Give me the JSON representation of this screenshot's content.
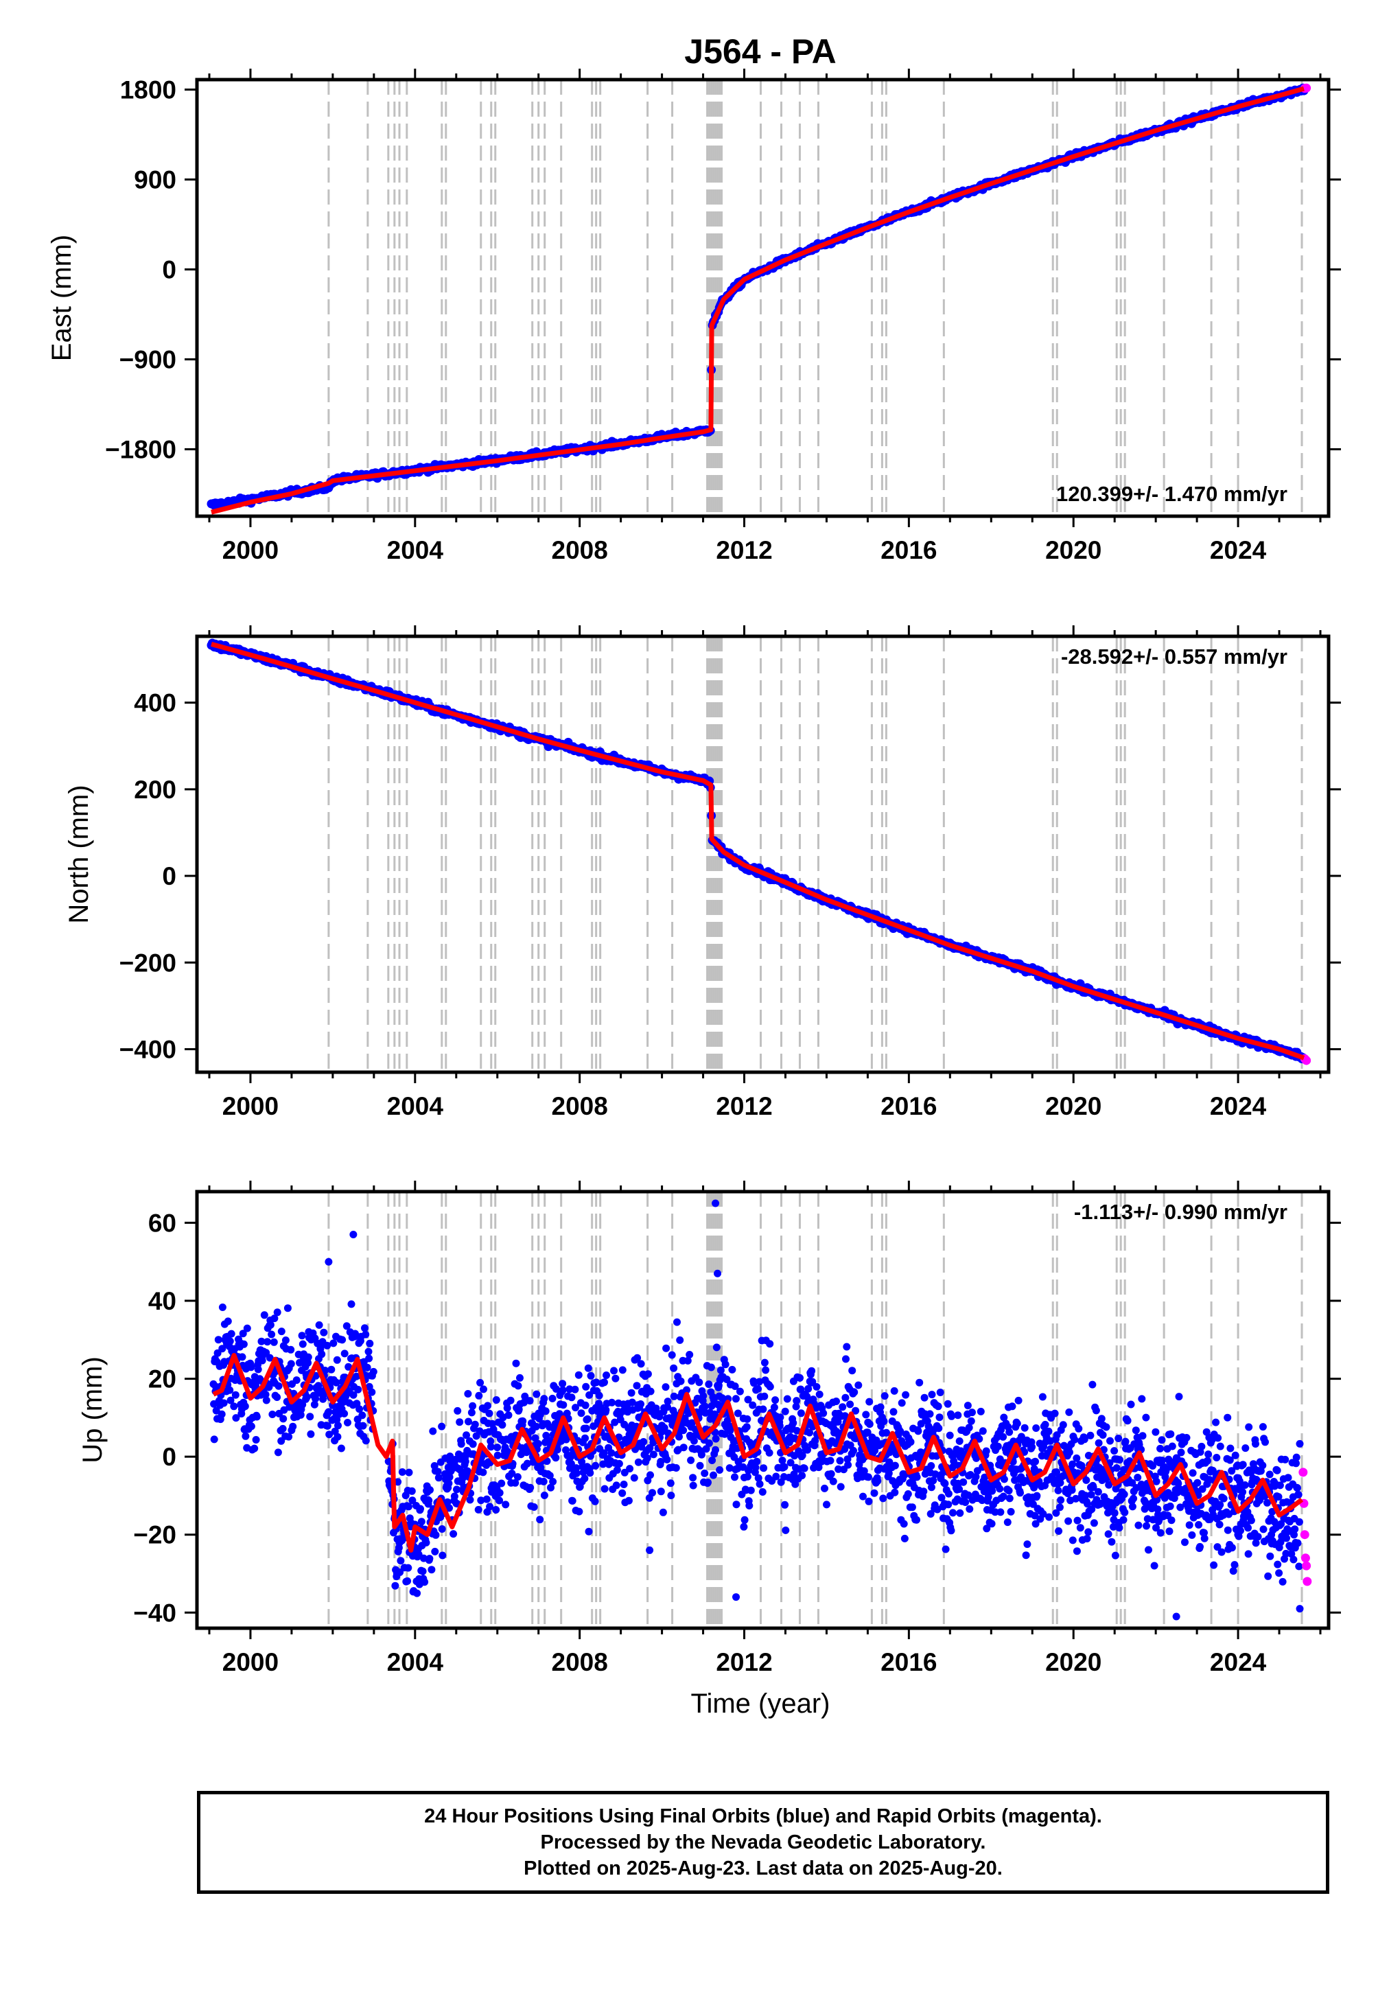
{
  "figure": {
    "title": "J564 - PA",
    "xlabel": "Time (year)"
  },
  "footer": {
    "line1": "24 Hour Positions Using Final Orbits (blue) and Rapid Orbits (magenta).",
    "line2": "Processed by the Nevada Geodetic Laboratory.",
    "line3": "Plotted on 2025-Aug-23. Last data on 2025-Aug-20."
  },
  "colors": {
    "final_orbits": "#0000ff",
    "rapid_orbits": "#ff00ff",
    "model": "#ff0000",
    "event_lines": "#c0c0c0"
  },
  "chart_data": [
    {
      "type": "scatter",
      "ylabel": "East (mm)",
      "xlim": [
        1998.7,
        2026.2
      ],
      "ylim": [
        -2470,
        1900
      ],
      "x_ticks": [
        2000,
        2004,
        2008,
        2012,
        2016,
        2020,
        2024
      ],
      "y_ticks": [
        -1800,
        -900,
        0,
        900,
        1800
      ],
      "y_tick_labels": [
        "−1800",
        "−900",
        "0",
        "900",
        "1800"
      ],
      "rate": "120.399+/- 1.470 mm/yr",
      "rate_position": "bottom-right",
      "grid": false,
      "series": [
        {
          "color": "blue",
          "x": [
            1999.05,
            2000.0,
            2001.0,
            2001.9,
            2002.0,
            2003.0,
            2004.0,
            2005.0,
            2006.0,
            2007.0,
            2008.0,
            2009.0,
            2010.0,
            2011.0,
            2011.19,
            2011.21,
            2011.5,
            2012.0,
            2013.0,
            2014.0,
            2015.0,
            2016.0,
            2017.0,
            2018.0,
            2019.0,
            2020.0,
            2021.0,
            2022.0,
            2023.0,
            2024.0,
            2025.0,
            2025.6
          ],
          "y": [
            -2360,
            -2305,
            -2235,
            -2180,
            -2110,
            -2060,
            -2010,
            -1960,
            -1910,
            -1855,
            -1800,
            -1745,
            -1680,
            -1620,
            -1600,
            -560,
            -300,
            -100,
            95,
            260,
            420,
            575,
            720,
            860,
            995,
            1130,
            1260,
            1390,
            1510,
            1630,
            1740,
            1810
          ]
        },
        {
          "color": "magenta",
          "x": [
            2025.62,
            2025.64,
            2025.66
          ],
          "y": [
            1812,
            1814,
            1816
          ]
        },
        {
          "name": "model",
          "color": "red",
          "x": [
            1999.05,
            2000.0,
            2001.0,
            2001.9,
            2002.0,
            2003.0,
            2004.0,
            2005.0,
            2006.0,
            2007.0,
            2008.0,
            2009.0,
            2010.0,
            2011.0,
            2011.19,
            2011.21,
            2011.5,
            2012.0,
            2013.0,
            2014.0,
            2015.0,
            2016.0,
            2017.0,
            2018.0,
            2019.0,
            2020.0,
            2021.0,
            2022.0,
            2023.0,
            2024.0,
            2025.0,
            2025.6
          ],
          "y": [
            -2430,
            -2330,
            -2245,
            -2140,
            -2115,
            -2065,
            -2015,
            -1965,
            -1915,
            -1860,
            -1805,
            -1750,
            -1685,
            -1625,
            -1605,
            -560,
            -300,
            -100,
            95,
            260,
            420,
            575,
            720,
            860,
            995,
            1130,
            1260,
            1390,
            1510,
            1630,
            1740,
            1810
          ]
        }
      ]
    },
    {
      "type": "scatter",
      "ylabel": "North (mm)",
      "xlim": [
        1998.7,
        2026.2
      ],
      "ylim": [
        -453,
        553
      ],
      "x_ticks": [
        2000,
        2004,
        2008,
        2012,
        2016,
        2020,
        2024
      ],
      "y_ticks": [
        -400,
        -200,
        0,
        200,
        400
      ],
      "y_tick_labels": [
        "−400",
        "−200",
        "0",
        "200",
        "400"
      ],
      "rate": "-28.592+/- 0.557 mm/yr",
      "rate_position": "top-right",
      "grid": false,
      "series": [
        {
          "color": "blue",
          "x": [
            1999.05,
            2000.0,
            2001.0,
            2002.0,
            2003.0,
            2004.0,
            2005.0,
            2006.0,
            2007.0,
            2008.0,
            2009.0,
            2010.0,
            2011.0,
            2011.19,
            2011.21,
            2011.5,
            2012.0,
            2013.0,
            2014.0,
            2015.0,
            2016.0,
            2017.0,
            2018.0,
            2019.0,
            2020.0,
            2021.0,
            2022.0,
            2023.0,
            2024.0,
            2025.0,
            2025.6
          ],
          "y": [
            535,
            510,
            485,
            455,
            430,
            400,
            370,
            345,
            315,
            290,
            265,
            240,
            220,
            210,
            85,
            55,
            25,
            -15,
            -55,
            -90,
            -125,
            -160,
            -190,
            -220,
            -255,
            -285,
            -315,
            -345,
            -375,
            -400,
            -420
          ]
        },
        {
          "color": "magenta",
          "x": [
            2025.62,
            2025.64,
            2025.66
          ],
          "y": [
            -422,
            -424,
            -426
          ]
        },
        {
          "name": "model",
          "color": "red",
          "x": [
            1999.05,
            2000.0,
            2001.0,
            2002.0,
            2003.0,
            2004.0,
            2005.0,
            2006.0,
            2007.0,
            2008.0,
            2009.0,
            2010.0,
            2011.0,
            2011.19,
            2011.21,
            2011.5,
            2012.0,
            2013.0,
            2014.0,
            2015.0,
            2016.0,
            2017.0,
            2018.0,
            2019.0,
            2020.0,
            2021.0,
            2022.0,
            2023.0,
            2024.0,
            2025.0,
            2025.6
          ],
          "y": [
            535,
            510,
            483,
            455,
            428,
            400,
            372,
            344,
            316,
            290,
            265,
            240,
            220,
            210,
            85,
            55,
            25,
            -15,
            -55,
            -90,
            -125,
            -160,
            -190,
            -220,
            -255,
            -285,
            -315,
            -345,
            -375,
            -400,
            -420
          ]
        }
      ]
    },
    {
      "type": "scatter",
      "ylabel": "Up (mm)",
      "xlim": [
        1998.7,
        2026.2
      ],
      "ylim": [
        -44,
        68
      ],
      "x_ticks": [
        2000,
        2004,
        2008,
        2012,
        2016,
        2020,
        2024
      ],
      "y_ticks": [
        -40,
        -20,
        0,
        20,
        40,
        60
      ],
      "y_tick_labels": [
        "−40",
        "−20",
        "0",
        "20",
        "40",
        "60"
      ],
      "rate": "-1.113+/- 0.990 mm/yr",
      "rate_position": "top-right",
      "grid": false,
      "noise_amplitude_mm": 8,
      "series": [
        {
          "color": "blue",
          "x": [
            1999.1,
            1999.5,
            2000.0,
            2000.5,
            2001.0,
            2001.5,
            2002.0,
            2002.5,
            2003.0,
            2003.3,
            2003.5,
            2004.0,
            2004.5,
            2005.0,
            2005.5,
            2006.0,
            2006.5,
            2007.0,
            2007.5,
            2008.0,
            2008.5,
            2009.0,
            2009.5,
            2010.0,
            2010.5,
            2011.0,
            2011.5,
            2012.0,
            2012.5,
            2013.0,
            2013.5,
            2014.0,
            2014.5,
            2015.0,
            2015.5,
            2016.0,
            2016.5,
            2017.0,
            2017.5,
            2018.0,
            2018.5,
            2019.0,
            2019.5,
            2020.0,
            2020.5,
            2021.0,
            2021.5,
            2022.0,
            2022.5,
            2023.0,
            2023.5,
            2024.0,
            2024.5,
            2025.0,
            2025.5
          ],
          "y": [
            16,
            25,
            16,
            24,
            15,
            23,
            16,
            24,
            14,
            5,
            -19,
            -22,
            -13,
            -5,
            4,
            0,
            7,
            0,
            9,
            1,
            9,
            2,
            10,
            3,
            14,
            6,
            14,
            0,
            10,
            2,
            12,
            3,
            10,
            0,
            4,
            -3,
            2,
            -5,
            2,
            -6,
            2,
            -6,
            1,
            -7,
            0,
            -7,
            -1,
            -10,
            -5,
            -13,
            -6,
            -14,
            -8,
            -15,
            -12
          ]
        },
        {
          "color": "magenta",
          "x": [
            2025.58,
            2025.6,
            2025.62,
            2025.64,
            2025.66,
            2025.68
          ],
          "y": [
            -4,
            -12,
            -20,
            -26,
            -28,
            -32
          ]
        },
        {
          "name": "model",
          "color": "red",
          "x": [
            1999.1,
            1999.3,
            1999.6,
            2000.0,
            2000.3,
            2000.6,
            2001.0,
            2001.3,
            2001.6,
            2002.0,
            2002.3,
            2002.6,
            2002.9,
            2003.1,
            2003.3,
            2003.45,
            2003.5,
            2003.7,
            2003.9,
            2004.0,
            2004.3,
            2004.6,
            2004.9,
            2005.3,
            2005.6,
            2006.0,
            2006.3,
            2006.6,
            2007.0,
            2007.3,
            2007.6,
            2008.0,
            2008.3,
            2008.6,
            2009.0,
            2009.3,
            2009.6,
            2010.0,
            2010.3,
            2010.6,
            2011.0,
            2011.3,
            2011.6,
            2012.0,
            2012.3,
            2012.6,
            2013.0,
            2013.3,
            2013.6,
            2014.0,
            2014.3,
            2014.6,
            2015.0,
            2015.3,
            2015.6,
            2016.0,
            2016.3,
            2016.6,
            2017.0,
            2017.3,
            2017.6,
            2018.0,
            2018.3,
            2018.6,
            2019.0,
            2019.3,
            2019.6,
            2020.0,
            2020.3,
            2020.6,
            2021.0,
            2021.3,
            2021.6,
            2022.0,
            2022.3,
            2022.6,
            2023.0,
            2023.3,
            2023.6,
            2024.0,
            2024.3,
            2024.6,
            2025.0,
            2025.3,
            2025.55
          ],
          "y": [
            16,
            17,
            26,
            15,
            18,
            25,
            14,
            17,
            24,
            14,
            18,
            25,
            12,
            3,
            0,
            4,
            -18,
            -15,
            -24,
            -18,
            -20,
            -11,
            -18,
            -8,
            3,
            -2,
            -1,
            7,
            -1,
            1,
            10,
            0,
            2,
            10,
            1,
            3,
            11,
            2,
            6,
            16,
            5,
            8,
            14,
            0,
            2,
            11,
            1,
            3,
            13,
            1,
            2,
            11,
            0,
            -1,
            6,
            -4,
            -3,
            5,
            -5,
            -3,
            4,
            -6,
            -4,
            3,
            -6,
            -4,
            3,
            -7,
            -4,
            2,
            -7,
            -5,
            1,
            -10,
            -7,
            -2,
            -12,
            -10,
            -4,
            -14,
            -11,
            -6,
            -15,
            -13,
            -11
          ]
        }
      ]
    }
  ],
  "event_lines_years": [
    2001.9,
    2002.85,
    2003.35,
    2003.5,
    2003.62,
    2003.8,
    2004.65,
    2004.75,
    2005.6,
    2005.85,
    2005.95,
    2006.85,
    2007.0,
    2007.15,
    2007.55,
    2008.3,
    2008.4,
    2008.5,
    2009.65,
    2010.25,
    2011.1,
    2011.15,
    2011.2,
    2011.25,
    2011.3,
    2011.35,
    2011.4,
    2011.45,
    2012.4,
    2012.9,
    2013.35,
    2013.8,
    2015.1,
    2015.35,
    2015.45,
    2016.85,
    2019.5,
    2019.6,
    2021.05,
    2021.15,
    2021.25,
    2022.2,
    2023.35,
    2024.0,
    2025.55
  ]
}
